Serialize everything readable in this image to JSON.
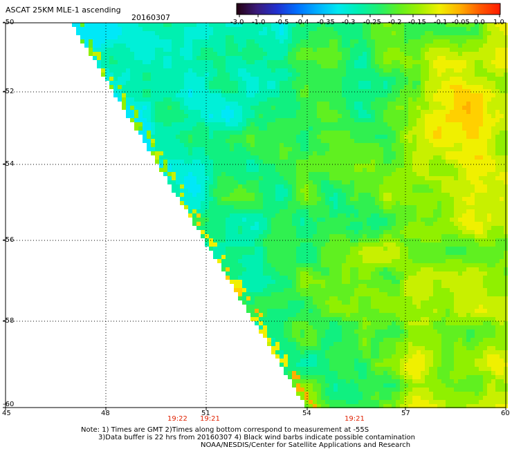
{
  "header": {
    "title": "ASCAT 25KM MLE-1 ascending",
    "date": "20160307"
  },
  "colorbar": {
    "ticks": [
      "-3.0",
      "-1.0",
      "-0.5",
      "-0.4",
      "-0.35",
      "-0.3",
      "-0.25",
      "-0.2",
      "-0.15",
      "-0.1",
      "-0.05",
      "0.0",
      "1.0"
    ],
    "colors": [
      "#240010",
      "#3a1a7a",
      "#2030d0",
      "#0070ff",
      "#00b0ff",
      "#00e8f0",
      "#00f0b0",
      "#20f070",
      "#60f020",
      "#a0f000",
      "#f0f000",
      "#ffb000",
      "#ff5a00",
      "#ff1a00"
    ]
  },
  "axes": {
    "lat_labels": [
      "-50",
      "-52",
      "-54",
      "-56",
      "-58",
      "-60"
    ],
    "lon_labels": [
      "45",
      "48",
      "51",
      "54",
      "57",
      "60"
    ],
    "time_labels": [
      "19:22",
      "19:21",
      "19:21"
    ]
  },
  "notes": {
    "line1": "Note: 1) Times are GMT 2)Times along bottom correspond to measurement at -55S",
    "line2": "3)Data buffer is 22 hrs from 20160307 4) Black wind barbs indicate possible contamination",
    "line3": "NOAA/NESDIS/Center for Satellite Applications and Research"
  }
}
